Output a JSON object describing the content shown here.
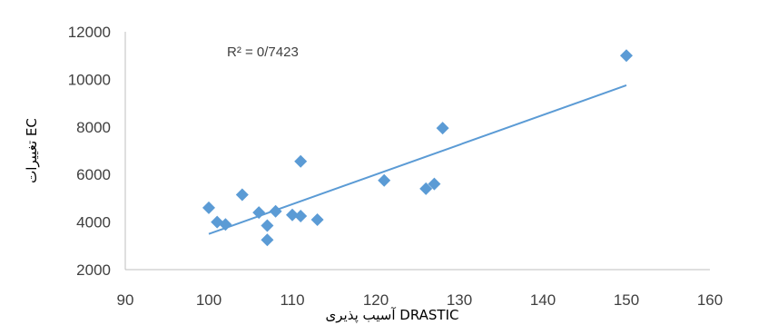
{
  "chart_data": {
    "type": "scatter",
    "x": [
      100,
      101,
      102,
      104,
      106,
      107,
      107,
      108,
      110,
      111,
      111,
      113,
      121,
      126,
      127,
      128,
      150
    ],
    "y": [
      4600,
      4000,
      3900,
      5150,
      4400,
      3850,
      3250,
      4450,
      4300,
      4250,
      6550,
      4100,
      5750,
      5400,
      5600,
      7950,
      11000
    ],
    "trendline": {
      "x": [
        100,
        150
      ],
      "y": [
        3500,
        9750
      ]
    },
    "annotation": "R² = 0/7423",
    "xlabel": "آسیب پذیری DRASTIC",
    "ylabel": "تغییرات EC",
    "xlim": [
      90,
      160
    ],
    "ylim": [
      2000,
      12000
    ],
    "xticks": [
      90,
      100,
      110,
      120,
      130,
      140,
      150,
      160
    ],
    "yticks": [
      2000,
      4000,
      6000,
      8000,
      10000,
      12000
    ],
    "grid": false,
    "colors": {
      "marker": "#5b9bd5",
      "trendline": "#5b9bd5",
      "axis": "#bfbfbf",
      "text": "#404040"
    }
  }
}
